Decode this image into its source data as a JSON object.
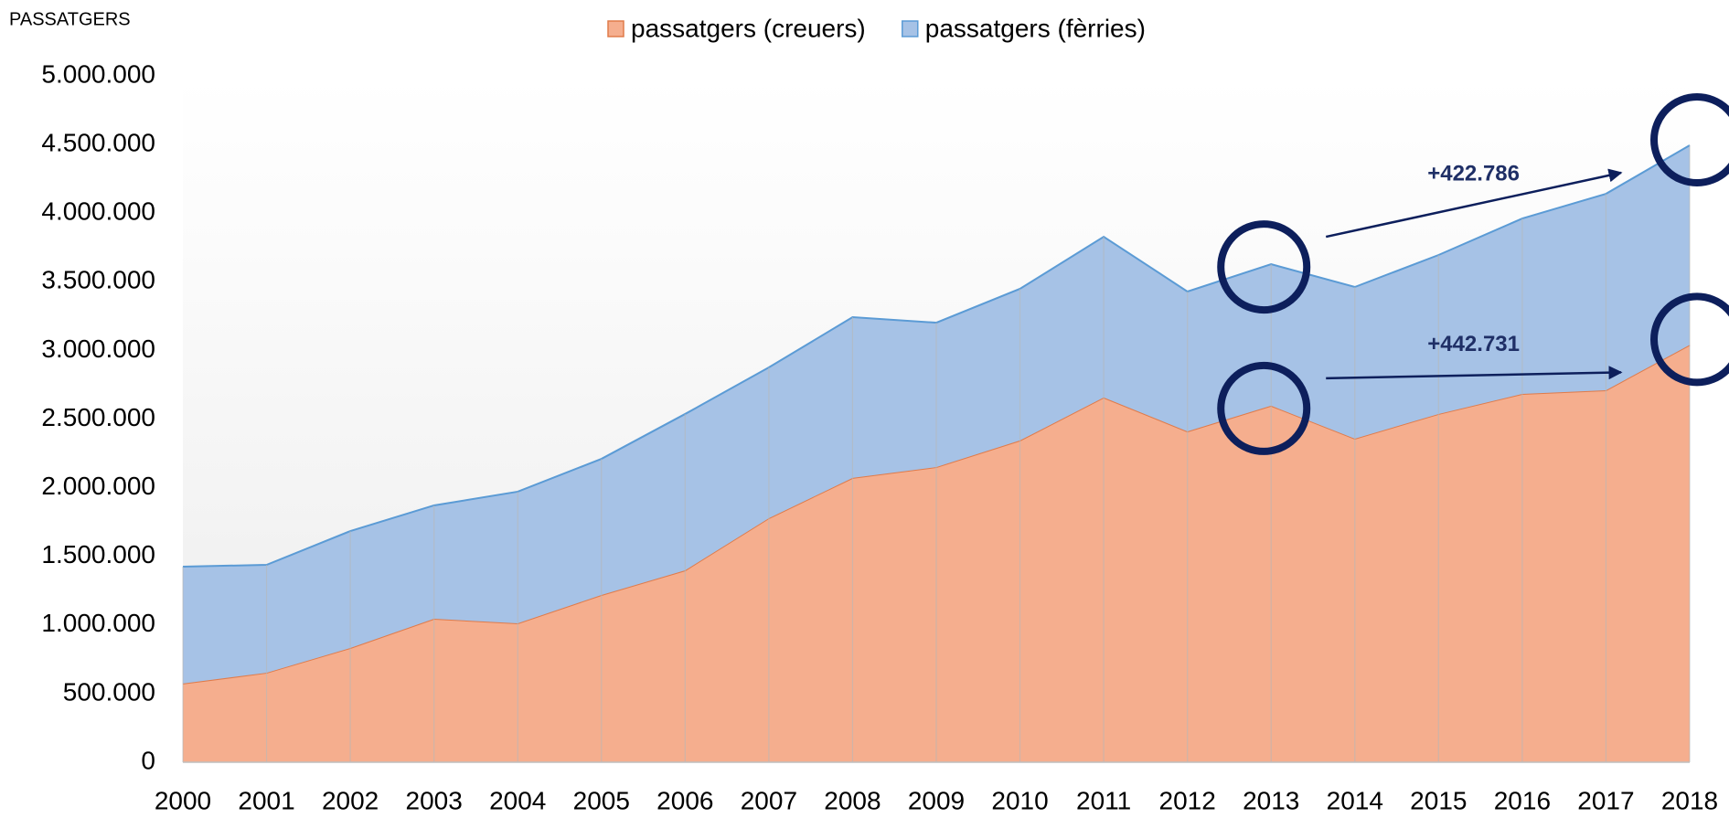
{
  "chart_data": {
    "type": "stacked_area",
    "y_axis_label": "PASSATGERS",
    "categories": [
      "2000",
      "2001",
      "2002",
      "2003",
      "2004",
      "2005",
      "2006",
      "2007",
      "2008",
      "2009",
      "2010",
      "2011",
      "2012",
      "2013",
      "2014",
      "2015",
      "2016",
      "2017",
      "2018"
    ],
    "series": [
      {
        "name": "passatgers (creuers)",
        "color": "#f5ae8e",
        "edge": "#e07b4a",
        "values": [
          573000,
          652000,
          832000,
          1045000,
          1012000,
          1218000,
          1398000,
          1778000,
          2071000,
          2150000,
          2344000,
          2657000,
          2410000,
          2597000,
          2357000,
          2537000,
          2683000,
          2710000,
          3040000
        ]
      },
      {
        "name": "passatgers (fèrries)",
        "color": "#a6c2e6",
        "edge": "#5b9bd5",
        "values": [
          852000,
          786000,
          852000,
          826000,
          959000,
          992000,
          1139000,
          1098000,
          1171000,
          1052000,
          1105000,
          1171000,
          1019000,
          1031000,
          1105000,
          1158000,
          1278000,
          1431000,
          1454000
        ]
      }
    ],
    "ylim": [
      0,
      5000000
    ],
    "yticks": [
      0,
      {
        "value": 500000,
        "label": "500.000"
      },
      {
        "value": 1000000,
        "label": "1.000.000"
      },
      {
        "value": 1500000,
        "label": "1.500.000"
      },
      {
        "value": 2000000,
        "label": "2.000.000"
      },
      {
        "value": 2500000,
        "label": "2.500.000"
      },
      {
        "value": 3000000,
        "label": "3.000.000"
      },
      {
        "value": 3500000,
        "label": "3.500.000"
      },
      {
        "value": 4000000,
        "label": "4.000.000"
      },
      {
        "value": 4500000,
        "label": "4.500.000"
      },
      {
        "value": 5000000,
        "label": "5.000.000"
      }
    ],
    "annotations": [
      "+422.786",
      "+442.731"
    ]
  }
}
